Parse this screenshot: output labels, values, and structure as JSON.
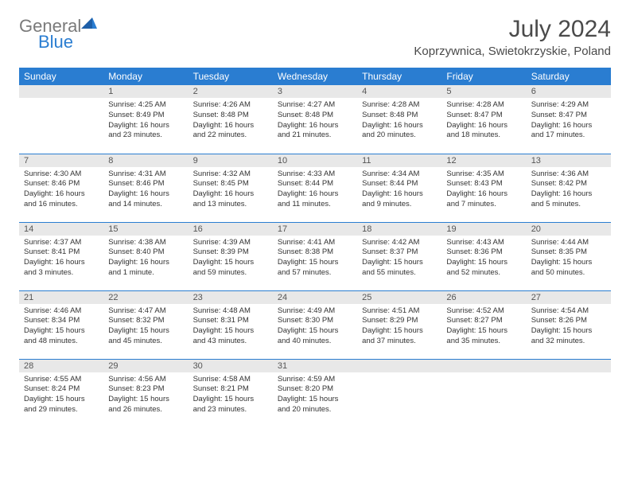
{
  "logo": {
    "text1": "General",
    "text2": "Blue"
  },
  "title": "July 2024",
  "location": "Koprzywnica, Swietokrzyskie, Poland",
  "colors": {
    "header_bg": "#2a7dd1",
    "header_text": "#ffffff",
    "day_header_bg": "#e8e8e8",
    "row_divider": "#2a7dd1",
    "logo_gray": "#7a7a7a",
    "logo_blue": "#2a7dd1"
  },
  "weekdays": [
    "Sunday",
    "Monday",
    "Tuesday",
    "Wednesday",
    "Thursday",
    "Friday",
    "Saturday"
  ],
  "weeks": [
    [
      {
        "empty": true
      },
      {
        "n": "1",
        "sr": "4:25 AM",
        "ss": "8:49 PM",
        "dl": "Daylight: 16 hours and 23 minutes."
      },
      {
        "n": "2",
        "sr": "4:26 AM",
        "ss": "8:48 PM",
        "dl": "Daylight: 16 hours and 22 minutes."
      },
      {
        "n": "3",
        "sr": "4:27 AM",
        "ss": "8:48 PM",
        "dl": "Daylight: 16 hours and 21 minutes."
      },
      {
        "n": "4",
        "sr": "4:28 AM",
        "ss": "8:48 PM",
        "dl": "Daylight: 16 hours and 20 minutes."
      },
      {
        "n": "5",
        "sr": "4:28 AM",
        "ss": "8:47 PM",
        "dl": "Daylight: 16 hours and 18 minutes."
      },
      {
        "n": "6",
        "sr": "4:29 AM",
        "ss": "8:47 PM",
        "dl": "Daylight: 16 hours and 17 minutes."
      }
    ],
    [
      {
        "n": "7",
        "sr": "4:30 AM",
        "ss": "8:46 PM",
        "dl": "Daylight: 16 hours and 16 minutes."
      },
      {
        "n": "8",
        "sr": "4:31 AM",
        "ss": "8:46 PM",
        "dl": "Daylight: 16 hours and 14 minutes."
      },
      {
        "n": "9",
        "sr": "4:32 AM",
        "ss": "8:45 PM",
        "dl": "Daylight: 16 hours and 13 minutes."
      },
      {
        "n": "10",
        "sr": "4:33 AM",
        "ss": "8:44 PM",
        "dl": "Daylight: 16 hours and 11 minutes."
      },
      {
        "n": "11",
        "sr": "4:34 AM",
        "ss": "8:44 PM",
        "dl": "Daylight: 16 hours and 9 minutes."
      },
      {
        "n": "12",
        "sr": "4:35 AM",
        "ss": "8:43 PM",
        "dl": "Daylight: 16 hours and 7 minutes."
      },
      {
        "n": "13",
        "sr": "4:36 AM",
        "ss": "8:42 PM",
        "dl": "Daylight: 16 hours and 5 minutes."
      }
    ],
    [
      {
        "n": "14",
        "sr": "4:37 AM",
        "ss": "8:41 PM",
        "dl": "Daylight: 16 hours and 3 minutes."
      },
      {
        "n": "15",
        "sr": "4:38 AM",
        "ss": "8:40 PM",
        "dl": "Daylight: 16 hours and 1 minute."
      },
      {
        "n": "16",
        "sr": "4:39 AM",
        "ss": "8:39 PM",
        "dl": "Daylight: 15 hours and 59 minutes."
      },
      {
        "n": "17",
        "sr": "4:41 AM",
        "ss": "8:38 PM",
        "dl": "Daylight: 15 hours and 57 minutes."
      },
      {
        "n": "18",
        "sr": "4:42 AM",
        "ss": "8:37 PM",
        "dl": "Daylight: 15 hours and 55 minutes."
      },
      {
        "n": "19",
        "sr": "4:43 AM",
        "ss": "8:36 PM",
        "dl": "Daylight: 15 hours and 52 minutes."
      },
      {
        "n": "20",
        "sr": "4:44 AM",
        "ss": "8:35 PM",
        "dl": "Daylight: 15 hours and 50 minutes."
      }
    ],
    [
      {
        "n": "21",
        "sr": "4:46 AM",
        "ss": "8:34 PM",
        "dl": "Daylight: 15 hours and 48 minutes."
      },
      {
        "n": "22",
        "sr": "4:47 AM",
        "ss": "8:32 PM",
        "dl": "Daylight: 15 hours and 45 minutes."
      },
      {
        "n": "23",
        "sr": "4:48 AM",
        "ss": "8:31 PM",
        "dl": "Daylight: 15 hours and 43 minutes."
      },
      {
        "n": "24",
        "sr": "4:49 AM",
        "ss": "8:30 PM",
        "dl": "Daylight: 15 hours and 40 minutes."
      },
      {
        "n": "25",
        "sr": "4:51 AM",
        "ss": "8:29 PM",
        "dl": "Daylight: 15 hours and 37 minutes."
      },
      {
        "n": "26",
        "sr": "4:52 AM",
        "ss": "8:27 PM",
        "dl": "Daylight: 15 hours and 35 minutes."
      },
      {
        "n": "27",
        "sr": "4:54 AM",
        "ss": "8:26 PM",
        "dl": "Daylight: 15 hours and 32 minutes."
      }
    ],
    [
      {
        "n": "28",
        "sr": "4:55 AM",
        "ss": "8:24 PM",
        "dl": "Daylight: 15 hours and 29 minutes."
      },
      {
        "n": "29",
        "sr": "4:56 AM",
        "ss": "8:23 PM",
        "dl": "Daylight: 15 hours and 26 minutes."
      },
      {
        "n": "30",
        "sr": "4:58 AM",
        "ss": "8:21 PM",
        "dl": "Daylight: 15 hours and 23 minutes."
      },
      {
        "n": "31",
        "sr": "4:59 AM",
        "ss": "8:20 PM",
        "dl": "Daylight: 15 hours and 20 minutes."
      },
      {
        "empty": true
      },
      {
        "empty": true
      },
      {
        "empty": true
      }
    ]
  ],
  "labels": {
    "sunrise": "Sunrise: ",
    "sunset": "Sunset: "
  }
}
